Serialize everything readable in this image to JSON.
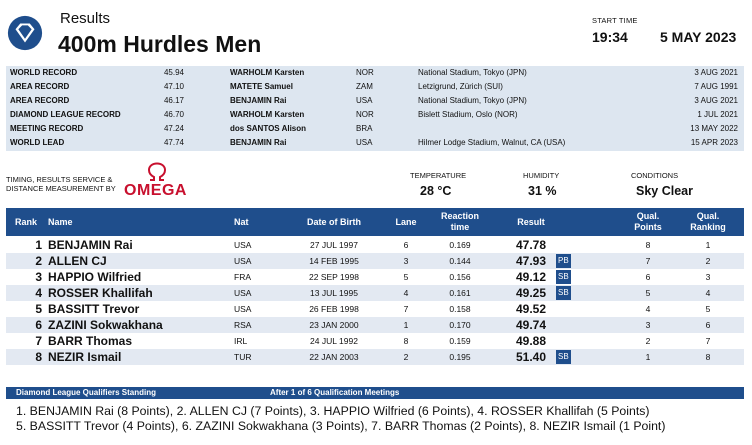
{
  "header": {
    "section": "Results",
    "event": "400m Hurdles Men",
    "start_time_label": "START TIME",
    "start_time": "19:34",
    "date": "5 MAY 2023"
  },
  "records": [
    {
      "label": "WORLD RECORD",
      "mark": "45.94",
      "athlete": "WARHOLM Karsten",
      "nat": "NOR",
      "venue": "National Stadium, Tokyo (JPN)",
      "date": "3 AUG 2021"
    },
    {
      "label": "AREA RECORD",
      "mark": "47.10",
      "athlete": "MATETE Samuel",
      "nat": "ZAM",
      "venue": "Letzigrund, Zürich (SUI)",
      "date": "7 AUG 1991"
    },
    {
      "label": "AREA RECORD",
      "mark": "46.17",
      "athlete": "BENJAMIN Rai",
      "nat": "USA",
      "venue": "National Stadium, Tokyo (JPN)",
      "date": "3 AUG 2021"
    },
    {
      "label": "DIAMOND LEAGUE RECORD",
      "mark": "46.70",
      "athlete": "WARHOLM Karsten",
      "nat": "NOR",
      "venue": "Bislett Stadium, Oslo (NOR)",
      "date": "1 JUL 2021"
    },
    {
      "label": "MEETING RECORD",
      "mark": "47.24",
      "athlete": "dos SANTOS Alison",
      "nat": "BRA",
      "venue": "",
      "date": "13 MAY 2022"
    },
    {
      "label": "WORLD LEAD",
      "mark": "47.74",
      "athlete": "BENJAMIN Rai",
      "nat": "USA",
      "venue": "Hilmer Lodge Stadium, Walnut, CA (USA)",
      "date": "15 APR 2023"
    }
  ],
  "timing": {
    "line1": "TIMING, RESULTS SERVICE &",
    "line2": "DISTANCE MEASUREMENT BY",
    "brand": "OMEGA"
  },
  "conditions": {
    "temperature_label": "TEMPERATURE",
    "temperature": "28 °C",
    "humidity_label": "HUMIDITY",
    "humidity": "31 %",
    "conditions_label": "CONDITIONS",
    "conditions": "Sky Clear"
  },
  "table": {
    "headers": {
      "rank": "Rank",
      "name": "Name",
      "nat": "Nat",
      "dob": "Date of Birth",
      "lane": "Lane",
      "rt1": "Reaction",
      "rt2": "time",
      "result": "Result",
      "pts1": "Qual.",
      "pts2": "Points",
      "qr1": "Qual.",
      "qr2": "Ranking"
    },
    "rows": [
      {
        "rank": "1",
        "name": "BENJAMIN Rai",
        "nat": "USA",
        "dob": "27 JUL 1997",
        "lane": "6",
        "reaction": "0.169",
        "result": "47.78",
        "badge": "",
        "points": "8",
        "ranking": "1"
      },
      {
        "rank": "2",
        "name": "ALLEN CJ",
        "nat": "USA",
        "dob": "14 FEB 1995",
        "lane": "3",
        "reaction": "0.144",
        "result": "47.93",
        "badge": "PB",
        "points": "7",
        "ranking": "2"
      },
      {
        "rank": "3",
        "name": "HAPPIO Wilfried",
        "nat": "FRA",
        "dob": "22 SEP 1998",
        "lane": "5",
        "reaction": "0.156",
        "result": "49.12",
        "badge": "SB",
        "points": "6",
        "ranking": "3"
      },
      {
        "rank": "4",
        "name": "ROSSER Khallifah",
        "nat": "USA",
        "dob": "13 JUL 1995",
        "lane": "4",
        "reaction": "0.161",
        "result": "49.25",
        "badge": "SB",
        "points": "5",
        "ranking": "4"
      },
      {
        "rank": "5",
        "name": "BASSITT Trevor",
        "nat": "USA",
        "dob": "26 FEB 1998",
        "lane": "7",
        "reaction": "0.158",
        "result": "49.52",
        "badge": "",
        "points": "4",
        "ranking": "5"
      },
      {
        "rank": "6",
        "name": "ZAZINI Sokwakhana",
        "nat": "RSA",
        "dob": "23 JAN 2000",
        "lane": "1",
        "reaction": "0.170",
        "result": "49.74",
        "badge": "",
        "points": "3",
        "ranking": "6"
      },
      {
        "rank": "7",
        "name": "BARR Thomas",
        "nat": "IRL",
        "dob": "24 JUL 1992",
        "lane": "8",
        "reaction": "0.159",
        "result": "49.88",
        "badge": "",
        "points": "2",
        "ranking": "7"
      },
      {
        "rank": "8",
        "name": "NEZIR Ismail",
        "nat": "TUR",
        "dob": "22 JAN 2003",
        "lane": "2",
        "reaction": "0.195",
        "result": "51.40",
        "badge": "SB",
        "points": "1",
        "ranking": "8"
      }
    ]
  },
  "standing": {
    "title": "Diamond League Qualifiers Standing",
    "subtitle": "After 1 of 6 Qualification Meetings",
    "line1": "1. BENJAMIN Rai (8 Points), 2. ALLEN CJ (7 Points), 3. HAPPIO Wilfried (6 Points), 4. ROSSER Khallifah (5 Points)",
    "line2": "5. BASSITT Trevor (4 Points), 6. ZAZINI Sokwakhana (3 Points), 7. BARR Thomas (2 Points), 8. NEZIR Ismail (1 Point)"
  },
  "colors": {
    "header_blue": "#1f4e8c",
    "record_band": "#dde6f0",
    "row_alt": "#e3e9f2",
    "omega_red": "#c8102e"
  }
}
